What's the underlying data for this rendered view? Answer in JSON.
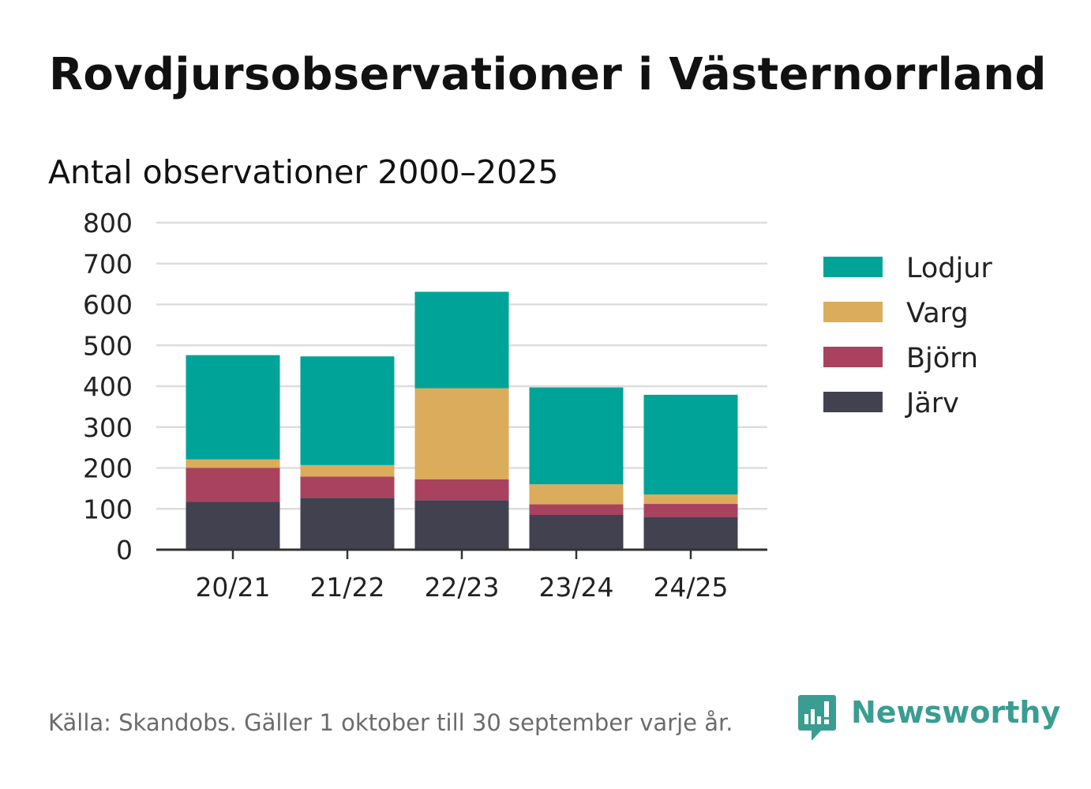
{
  "title": "Rovdjursobservationer i Västernorrland",
  "subtitle": "Antal observationer 2000–2025",
  "source": "Källa: Skandobs. Gäller 1 oktober till 30 september varje år.",
  "brand": {
    "name": "Newsworthy",
    "icon": "newsworthy-logo-icon",
    "color": "#3a9d92"
  },
  "chart_data": {
    "type": "bar",
    "stacked": true,
    "categories": [
      "20/21",
      "21/22",
      "22/23",
      "23/24",
      "24/25"
    ],
    "series": [
      {
        "name": "Järv",
        "color": "#41414f",
        "values": [
          117,
          127,
          121,
          85,
          80
        ]
      },
      {
        "name": "Björn",
        "color": "#a8425e",
        "values": [
          83,
          52,
          51,
          26,
          32
        ]
      },
      {
        "name": "Varg",
        "color": "#dbac5b",
        "values": [
          21,
          28,
          223,
          49,
          23
        ]
      },
      {
        "name": "Lodjur",
        "color": "#00a398",
        "values": [
          255,
          266,
          236,
          237,
          244
        ]
      }
    ],
    "legend": [
      "Lodjur",
      "Varg",
      "Björn",
      "Järv"
    ],
    "legend_position": "right",
    "ylim": [
      0,
      800
    ],
    "yticks": [
      0,
      100,
      200,
      300,
      400,
      500,
      600,
      700,
      800
    ],
    "grid": true,
    "xlabel": "",
    "ylabel": ""
  }
}
